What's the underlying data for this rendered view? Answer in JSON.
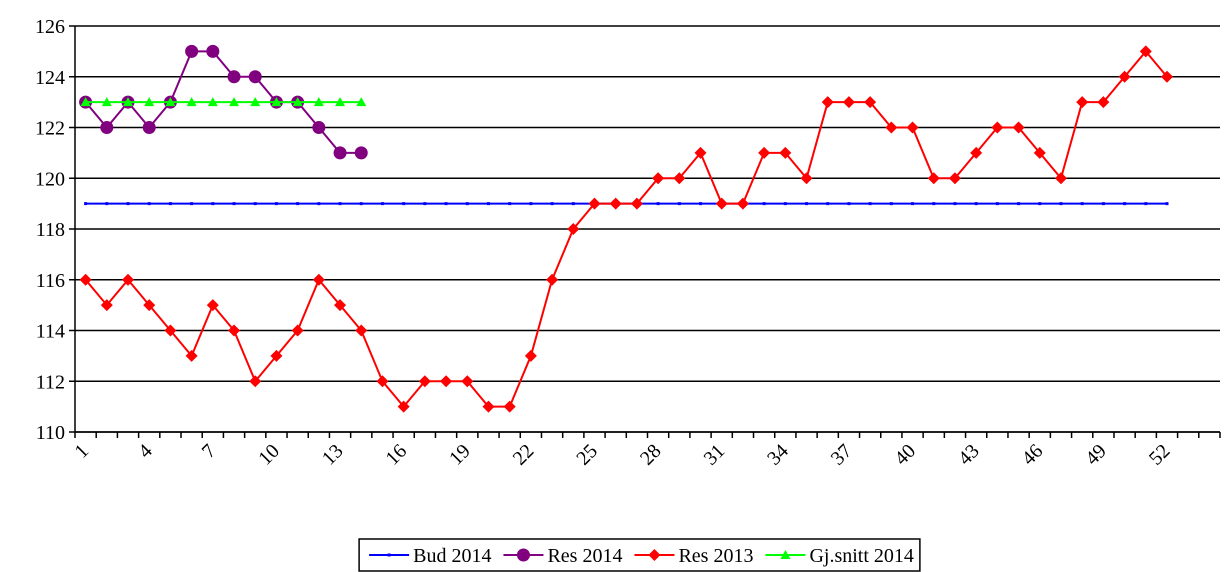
{
  "chart_data": {
    "type": "line",
    "categories": [
      "1",
      null,
      null,
      "4",
      null,
      null,
      "7",
      null,
      null,
      "10",
      null,
      null,
      "13",
      null,
      null,
      "16",
      null,
      null,
      "19",
      null,
      null,
      "22",
      null,
      null,
      "25",
      null,
      null,
      "28",
      null,
      null,
      "31",
      null,
      null,
      "34",
      null,
      null,
      "37",
      null,
      null,
      "40",
      null,
      null,
      "43",
      null,
      null,
      "46",
      null,
      null,
      "49",
      null,
      null,
      "52",
      null,
      null
    ],
    "series": [
      {
        "name": "Bud 2014",
        "color": "#0000ff",
        "marker": "dash",
        "values": [
          119,
          119,
          119,
          119,
          119,
          119,
          119,
          119,
          119,
          119,
          119,
          119,
          119,
          119,
          119,
          119,
          119,
          119,
          119,
          119,
          119,
          119,
          119,
          119,
          119,
          119,
          119,
          119,
          119,
          119,
          119,
          119,
          119,
          119,
          119,
          119,
          119,
          119,
          119,
          119,
          119,
          119,
          119,
          119,
          119,
          119,
          119,
          119,
          119,
          119,
          119,
          119,
          null,
          null
        ]
      },
      {
        "name": "Res 2014",
        "color": "#800080",
        "marker": "circle",
        "values": [
          123,
          122,
          123,
          122,
          123,
          125,
          125,
          124,
          124,
          123,
          123,
          122,
          121,
          121,
          null,
          null,
          null,
          null,
          null,
          null,
          null,
          null,
          null,
          null,
          null,
          null,
          null,
          null,
          null,
          null,
          null,
          null,
          null,
          null,
          null,
          null,
          null,
          null,
          null,
          null,
          null,
          null,
          null,
          null,
          null,
          null,
          null,
          null,
          null,
          null,
          null,
          null,
          null,
          null
        ]
      },
      {
        "name": "Res 2013",
        "color": "#ff0000",
        "marker": "diamond",
        "values": [
          116,
          115,
          116,
          115,
          114,
          113,
          115,
          114,
          112,
          113,
          114,
          116,
          115,
          114,
          112,
          111,
          112,
          112,
          112,
          111,
          111,
          113,
          116,
          118,
          119,
          119,
          119,
          120,
          120,
          121,
          119,
          119,
          121,
          121,
          120,
          123,
          123,
          123,
          122,
          122,
          120,
          120,
          121,
          122,
          122,
          121,
          120,
          123,
          123,
          124,
          125,
          124,
          null,
          null
        ]
      },
      {
        "name": "Gj.snitt 2014",
        "color": "#00ff00",
        "marker": "triangle",
        "values": [
          123,
          123,
          123,
          123,
          123,
          123,
          123,
          123,
          123,
          123,
          123,
          123,
          123,
          123,
          null,
          null,
          null,
          null,
          null,
          null,
          null,
          null,
          null,
          null,
          null,
          null,
          null,
          null,
          null,
          null,
          null,
          null,
          null,
          null,
          null,
          null,
          null,
          null,
          null,
          null,
          null,
          null,
          null,
          null,
          null,
          null,
          null,
          null,
          null,
          null,
          null,
          null,
          null,
          null
        ]
      }
    ],
    "ylim": [
      110,
      126
    ],
    "yticks": [
      110,
      112,
      114,
      116,
      118,
      120,
      122,
      124,
      126
    ],
    "grid": true,
    "legend": "bottom"
  }
}
